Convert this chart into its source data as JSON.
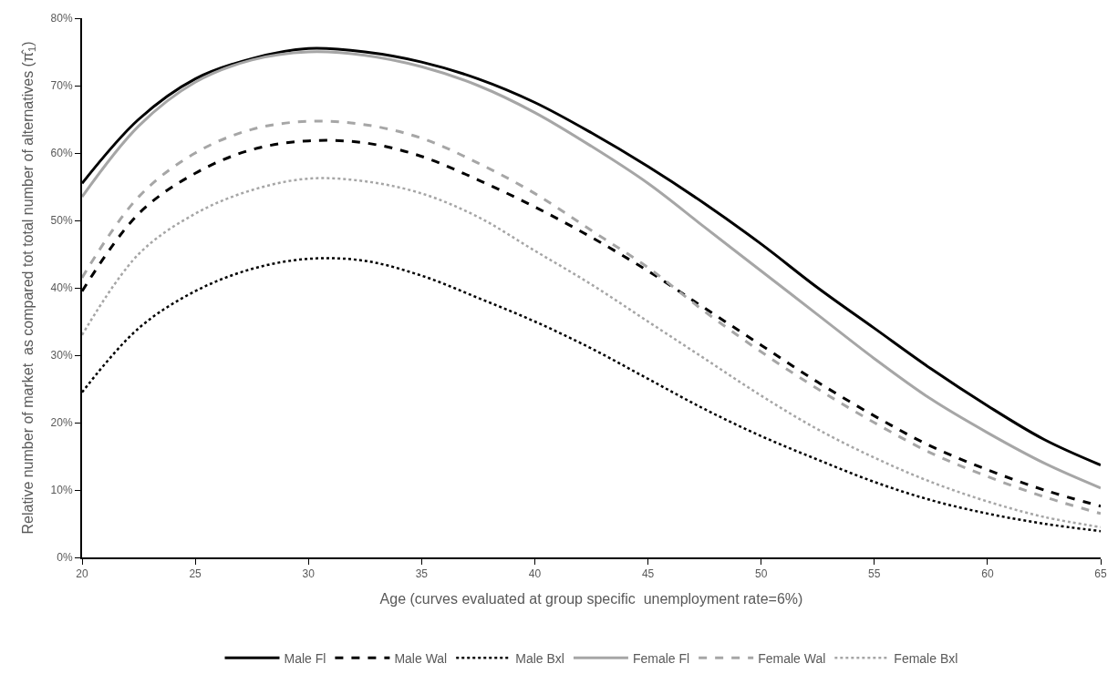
{
  "chart_data": {
    "type": "line",
    "xlabel": "Age (curves evaluated at group specific  unemployment rate=6%)",
    "ylabel": "Relative number of market  as compared tot total number of alternatives (π̂$_{1}$)",
    "x": [
      20,
      22.5,
      25,
      27.5,
      30,
      32.5,
      35,
      37.5,
      40,
      42.5,
      45,
      47.5,
      50,
      52.5,
      55,
      57.5,
      60,
      62.5,
      65
    ],
    "xlim": [
      20,
      65
    ],
    "xticks": [
      20,
      25,
      30,
      35,
      40,
      45,
      50,
      55,
      60,
      65
    ],
    "ylim": [
      0,
      0.8
    ],
    "yticks": [
      {
        "value": 0,
        "label": "0%"
      },
      {
        "value": 0.1,
        "label": "10%"
      },
      {
        "value": 0.2,
        "label": "20%"
      },
      {
        "value": 0.3,
        "label": "30%"
      },
      {
        "value": 0.4,
        "label": "40%"
      },
      {
        "value": 0.5,
        "label": "50%"
      },
      {
        "value": 0.6,
        "label": "60%"
      },
      {
        "value": 0.7,
        "label": "70%"
      },
      {
        "value": 0.8,
        "label": "80%"
      }
    ],
    "legend": "bottom",
    "marker": "none",
    "series": [
      {
        "name": "Male Fl",
        "color": "#000000",
        "line_style": "solid",
        "values": [
          0.555,
          0.65,
          0.71,
          0.74,
          0.755,
          0.75,
          0.735,
          0.71,
          0.675,
          0.63,
          0.58,
          0.525,
          0.465,
          0.4,
          0.34,
          0.28,
          0.225,
          0.175,
          0.137
        ]
      },
      {
        "name": "Male Wal",
        "color": "#000000",
        "line_style": "dashed",
        "values": [
          0.395,
          0.51,
          0.57,
          0.605,
          0.618,
          0.615,
          0.595,
          0.56,
          0.52,
          0.475,
          0.425,
          0.37,
          0.315,
          0.26,
          0.21,
          0.165,
          0.13,
          0.1,
          0.076
        ]
      },
      {
        "name": "Male Bxl",
        "color": "#000000",
        "line_style": "dotted",
        "values": [
          0.245,
          0.34,
          0.395,
          0.428,
          0.443,
          0.44,
          0.418,
          0.385,
          0.35,
          0.31,
          0.265,
          0.22,
          0.18,
          0.145,
          0.112,
          0.085,
          0.065,
          0.05,
          0.039
        ]
      },
      {
        "name": "Female Fl",
        "color": "#a6a6a6",
        "line_style": "solid",
        "values": [
          0.535,
          0.64,
          0.705,
          0.738,
          0.75,
          0.745,
          0.728,
          0.7,
          0.66,
          0.61,
          0.555,
          0.49,
          0.425,
          0.36,
          0.295,
          0.235,
          0.185,
          0.14,
          0.103
        ]
      },
      {
        "name": "Female Wal",
        "color": "#a6a6a6",
        "line_style": "dashed",
        "values": [
          0.415,
          0.535,
          0.6,
          0.635,
          0.647,
          0.642,
          0.622,
          0.585,
          0.54,
          0.485,
          0.43,
          0.365,
          0.305,
          0.25,
          0.2,
          0.155,
          0.12,
          0.09,
          0.065
        ]
      },
      {
        "name": "Female Bxl",
        "color": "#a6a6a6",
        "line_style": "dotted",
        "values": [
          0.33,
          0.45,
          0.51,
          0.545,
          0.562,
          0.558,
          0.54,
          0.505,
          0.455,
          0.405,
          0.35,
          0.295,
          0.24,
          0.19,
          0.148,
          0.112,
          0.083,
          0.06,
          0.045
        ]
      }
    ]
  }
}
